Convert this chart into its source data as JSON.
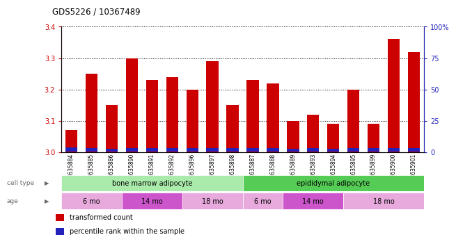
{
  "title": "GDS5226 / 10367489",
  "samples": [
    "GSM635884",
    "GSM635885",
    "GSM635886",
    "GSM635890",
    "GSM635891",
    "GSM635892",
    "GSM635896",
    "GSM635897",
    "GSM635898",
    "GSM635887",
    "GSM635888",
    "GSM635889",
    "GSM635893",
    "GSM635894",
    "GSM635895",
    "GSM635899",
    "GSM635900",
    "GSM635901"
  ],
  "red_values": [
    3.07,
    3.25,
    3.15,
    3.3,
    3.23,
    3.24,
    3.2,
    3.29,
    3.15,
    3.23,
    3.22,
    3.1,
    3.12,
    3.09,
    3.2,
    3.09,
    3.36,
    3.32
  ],
  "blue_heights": [
    0.012,
    0.01,
    0.008,
    0.01,
    0.01,
    0.01,
    0.01,
    0.01,
    0.01,
    0.01,
    0.01,
    0.008,
    0.01,
    0.008,
    0.01,
    0.01,
    0.01,
    0.01
  ],
  "y_min": 3.0,
  "y_max": 3.4,
  "y_ticks_left": [
    3.0,
    3.1,
    3.2,
    3.3,
    3.4
  ],
  "y_ticks_right_vals": [
    0,
    25,
    50,
    75,
    100
  ],
  "y_ticks_right_labels": [
    "0",
    "25",
    "50",
    "75",
    "100%"
  ],
  "red_color": "#cc0000",
  "blue_color": "#2222bb",
  "cell_type_color_bm": "#aaeaaa",
  "cell_type_color_ep": "#55cc55",
  "cell_type_labels": [
    {
      "label": "bone marrow adipocyte",
      "start": 0,
      "end": 9
    },
    {
      "label": "epididymal adipocyte",
      "start": 9,
      "end": 18
    }
  ],
  "age_groups": [
    {
      "label": "6 mo",
      "start": 0,
      "end": 3,
      "color": "#e8aadd"
    },
    {
      "label": "14 mo",
      "start": 3,
      "end": 6,
      "color": "#cc55cc"
    },
    {
      "label": "18 mo",
      "start": 6,
      "end": 9,
      "color": "#e8aadd"
    },
    {
      "label": "6 mo",
      "start": 9,
      "end": 11,
      "color": "#e8aadd"
    },
    {
      "label": "14 mo",
      "start": 11,
      "end": 14,
      "color": "#cc55cc"
    },
    {
      "label": "18 mo",
      "start": 14,
      "end": 18,
      "color": "#e8aadd"
    }
  ],
  "legend_items": [
    {
      "label": "transformed count",
      "color": "#cc0000"
    },
    {
      "label": "percentile rank within the sample",
      "color": "#2222bb"
    }
  ]
}
